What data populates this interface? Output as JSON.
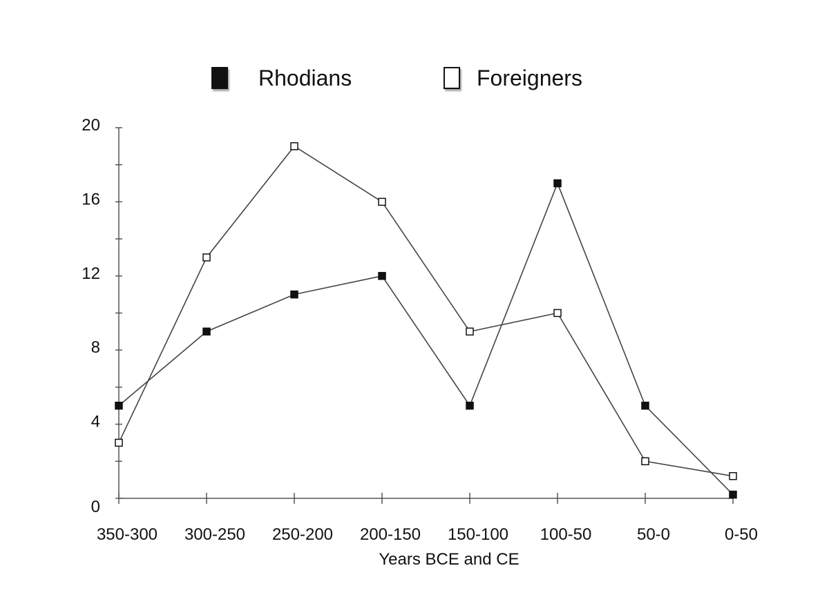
{
  "chart_data": {
    "type": "line",
    "title": "",
    "xlabel": "Years BCE and CE",
    "ylabel": "",
    "categories": [
      "350-300",
      "300-250",
      "250-200",
      "200-150",
      "150-100",
      "100-50",
      "50-0",
      "0-50"
    ],
    "ylim": [
      0,
      20
    ],
    "yticks": [
      "0",
      "4",
      "8",
      "12",
      "16",
      "20"
    ],
    "grid": false,
    "legend_position": "top",
    "series": [
      {
        "name": "Rhodians",
        "marker": "filled-square",
        "color": "#111111",
        "values": [
          5,
          9,
          11,
          12,
          5,
          17,
          5,
          0.2
        ]
      },
      {
        "name": "Foreigners",
        "marker": "open-square",
        "color": "#111111",
        "values": [
          3,
          13,
          19,
          16,
          9,
          10,
          2,
          1.2
        ]
      }
    ]
  }
}
